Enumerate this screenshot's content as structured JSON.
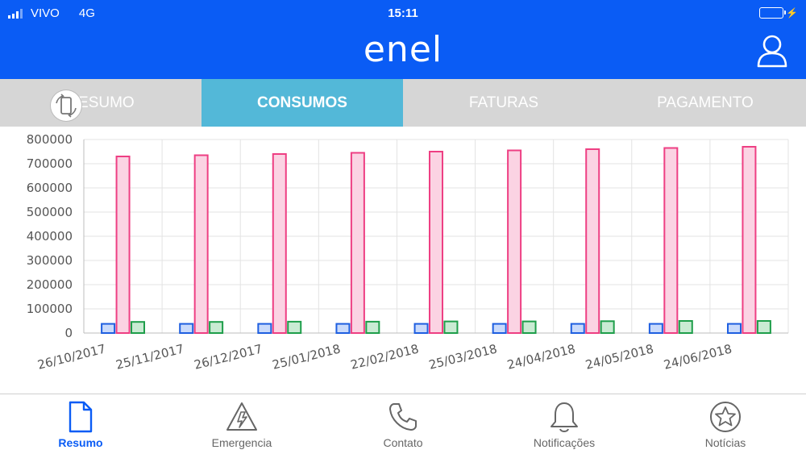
{
  "status_bar": {
    "carrier": "VIVO",
    "network": "4G",
    "time": "15:11"
  },
  "header": {
    "logo_text": "enel",
    "profile_icon": "user-icon"
  },
  "tabs": [
    {
      "label": "RESUMO",
      "active": false
    },
    {
      "label": "CONSUMOS",
      "active": true
    },
    {
      "label": "FATURAS",
      "active": false
    },
    {
      "label": "PAGAMENTO",
      "active": false
    }
  ],
  "rotate_icon": "rotate-screen-icon",
  "chart_data": {
    "type": "bar",
    "title": "",
    "xlabel": "",
    "ylabel": "",
    "ylim": [
      0,
      800000
    ],
    "yticks": [
      0,
      100000,
      200000,
      300000,
      400000,
      500000,
      600000,
      700000,
      800000
    ],
    "grid": true,
    "categories": [
      "26/10/2017",
      "25/11/2017",
      "26/12/2017",
      "25/01/2018",
      "22/02/2018",
      "25/03/2018",
      "24/04/2018",
      "24/05/2018",
      "24/06/2018"
    ],
    "series": [
      {
        "color": "#1f5fe0",
        "fill": "#c9dafb",
        "values": [
          38000,
          38000,
          38000,
          38000,
          38000,
          38000,
          38000,
          38000,
          38000
        ]
      },
      {
        "color": "#ee3f83",
        "fill": "#fbd3e3",
        "values": [
          730000,
          735000,
          740000,
          745000,
          750000,
          755000,
          760000,
          765000,
          770000
        ]
      },
      {
        "color": "#1e9e4a",
        "fill": "#c9ebd3",
        "values": [
          46000,
          46000,
          47000,
          47000,
          48000,
          48000,
          49000,
          50000,
          50000
        ]
      }
    ]
  },
  "tabbar": [
    {
      "label": "Resumo",
      "icon": "document-icon",
      "active": true
    },
    {
      "label": "Emergencia",
      "icon": "emergency-icon",
      "active": false
    },
    {
      "label": "Contato",
      "icon": "phone-icon",
      "active": false
    },
    {
      "label": "Notificações",
      "icon": "bell-icon",
      "active": false
    },
    {
      "label": "Notícias",
      "icon": "star-badge-icon",
      "active": false
    }
  ],
  "colors": {
    "header_bg": "#0a5cf5",
    "tab_active_bg": "#53b8d8",
    "tab_bg": "#d6d6d6",
    "tabbar_active": "#0a5cf5"
  }
}
